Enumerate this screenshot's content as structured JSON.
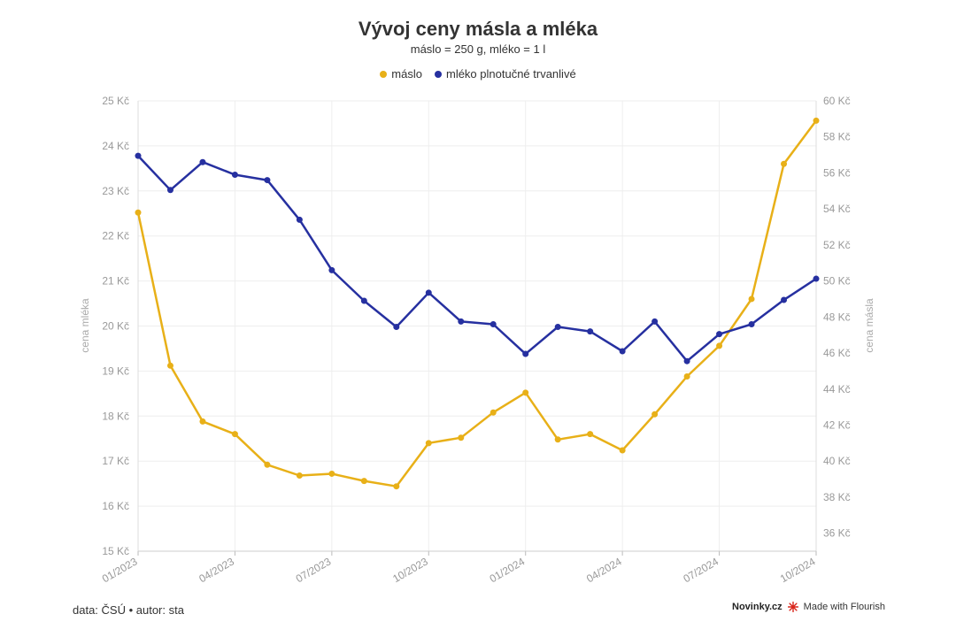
{
  "chart_data": {
    "type": "line",
    "title": "Vývoj ceny másla a mléka",
    "subtitle": "máslo = 250 g, mléko = 1 l",
    "x": [
      "01/2023",
      "02/2023",
      "03/2023",
      "04/2023",
      "05/2023",
      "06/2023",
      "07/2023",
      "08/2023",
      "09/2023",
      "10/2023",
      "11/2023",
      "12/2023",
      "01/2024",
      "02/2024",
      "03/2024",
      "04/2024",
      "05/2024",
      "06/2024",
      "07/2024",
      "08/2024",
      "09/2024",
      "10/2024"
    ],
    "x_tick_labels": [
      "01/2023",
      "04/2023",
      "07/2023",
      "10/2023",
      "01/2024",
      "04/2024",
      "07/2024",
      "10/2024"
    ],
    "y_left": {
      "label": "cena mléka",
      "range": [
        15,
        25
      ],
      "ticks": [
        "15 Kč",
        "16 Kč",
        "17 Kč",
        "18 Kč",
        "19 Kč",
        "20 Kč",
        "21 Kč",
        "22 Kč",
        "23 Kč",
        "24 Kč",
        "25 Kč"
      ]
    },
    "y_right": {
      "label": "cena másla",
      "range": [
        35,
        60
      ],
      "ticks": [
        "36 Kč",
        "38 Kč",
        "40 Kč",
        "42 Kč",
        "44 Kč",
        "46 Kč",
        "48 Kč",
        "50 Kč",
        "52 Kč",
        "54 Kč",
        "56 Kč",
        "58 Kč",
        "60 Kč"
      ]
    },
    "grid": true,
    "legend_position": "top-center",
    "series": [
      {
        "name": "máslo",
        "axis": "right",
        "color": "#e8b018",
        "values": [
          53.8,
          45.3,
          42.2,
          41.5,
          39.8,
          39.2,
          39.3,
          38.9,
          38.6,
          41.0,
          41.3,
          42.7,
          43.8,
          41.2,
          41.5,
          40.6,
          42.6,
          44.7,
          46.4,
          49.0,
          56.5,
          58.9
        ]
      },
      {
        "name": "mléko plnotučné trvanlivé",
        "axis": "left",
        "color": "#2630a0",
        "values": [
          23.78,
          23.02,
          23.64,
          23.36,
          23.24,
          22.36,
          21.24,
          20.56,
          19.98,
          20.74,
          20.1,
          20.04,
          19.38,
          19.98,
          19.88,
          19.44,
          20.1,
          19.22,
          19.82,
          20.04,
          20.58,
          21.05
        ]
      }
    ]
  },
  "footer": {
    "source": "data: ČSÚ • autor: sta",
    "brand": "Novinky.cz",
    "flourish": "Made with Flourish"
  },
  "colors": {
    "grid": "#eeeeee",
    "tick_text": "#999999",
    "accent_red": "#d9261c"
  }
}
